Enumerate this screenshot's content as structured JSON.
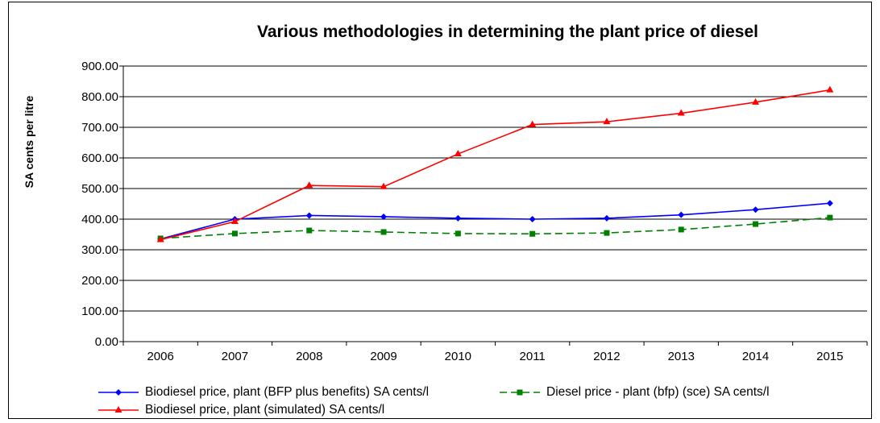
{
  "chart_data": {
    "type": "line",
    "title": "Various methodologies in determining the plant price of diesel",
    "xlabel": "",
    "ylabel": "SA cents per litre",
    "categories": [
      "2006",
      "2007",
      "2008",
      "2009",
      "2010",
      "2011",
      "2012",
      "2013",
      "2014",
      "2015"
    ],
    "yticks": [
      "0.00",
      "100.00",
      "200.00",
      "300.00",
      "400.00",
      "500.00",
      "600.00",
      "700.00",
      "800.00",
      "900.00"
    ],
    "ylim": [
      0,
      900
    ],
    "grid": true,
    "legend_position": "bottom",
    "series": [
      {
        "name": "Biodiesel price, plant (BFP plus benefits) SA cents/l",
        "color": "#0000ff",
        "marker": "diamond",
        "dash": "solid",
        "values": [
          335,
          400,
          412,
          408,
          403,
          400,
          403,
          414,
          431,
          452
        ]
      },
      {
        "name": "Diesel price - plant (bfp)  (sce) SA cents/l",
        "color": "#008000",
        "marker": "square",
        "dash": "dashed",
        "values": [
          337,
          353,
          363,
          358,
          353,
          352,
          355,
          366,
          384,
          405
        ]
      },
      {
        "name": "Biodiesel price, plant (simulated) SA cents/l",
        "color": "#ff0000",
        "marker": "triangle",
        "dash": "solid",
        "values": [
          333,
          392,
          510,
          506,
          613,
          709,
          718,
          746,
          782,
          822
        ]
      }
    ]
  }
}
